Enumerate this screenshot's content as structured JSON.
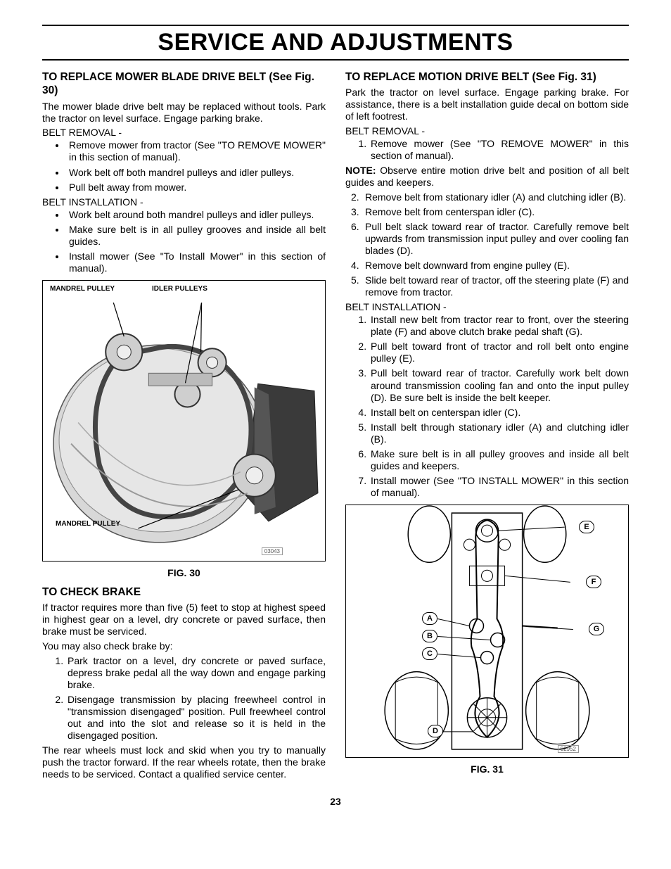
{
  "page_number": "23",
  "main_title": "SERVICE AND ADJUSTMENTS",
  "left": {
    "sec1": {
      "heading": "TO REPLACE MOWER BLADE DRIVE BELT (See Fig. 30)",
      "p1": "The mower blade drive belt may be replaced without tools. Park the tractor on level surface.  Engage parking brake.",
      "removal_head": "BELT REMOVAL -",
      "removal_items": [
        "Remove mower from tractor (See \"TO REMOVE MOWER\" in this section of manual).",
        "Work belt off both mandrel pulleys and idler pulleys.",
        "Pull belt away from mower."
      ],
      "install_head": "BELT INSTALLATION -",
      "install_items": [
        "Work belt around both mandrel pulleys and idler pulleys.",
        "Make sure belt is in all pulley grooves and inside all belt guides.",
        "Install mower (See \"To Install Mower\" in this section of manual)."
      ]
    },
    "fig30": {
      "caption": "FIG. 30",
      "label_mandrel_top": "MANDREL PULLEY",
      "label_idler": "IDLER PULLEYS",
      "label_mandrel_bottom": "MANDREL PULLEY",
      "drawing_id": "03043"
    },
    "sec2": {
      "heading": "TO CHECK BRAKE",
      "p1": "If tractor requires more than five (5) feet to stop at highest speed in highest gear on a level, dry concrete or paved surface, then brake must be serviced.",
      "p2": "You may also check brake by:",
      "steps": [
        "Park tractor on a level, dry concrete or paved surface, depress brake pedal all the way down and engage parking brake.",
        "Disengage transmission by placing freewheel control in \"transmission disengaged\" position. Pull freewheel control out and into the slot and release so it is held in the disengaged position."
      ],
      "p3": "The rear wheels must lock and skid when you try to manually push the tractor forward. If the rear wheels rotate, then the brake needs to be serviced. Contact a qualified service center."
    }
  },
  "right": {
    "sec1": {
      "heading": "TO REPLACE MOTION DRIVE BELT (See Fig. 31)",
      "p1": "Park the tractor on level surface.  Engage parking brake. For assistance, there is a belt installation guide decal on bottom side of left footrest.",
      "removal_head": "BELT REMOVAL -",
      "removal_step1": "Remove mower (See \"TO REMOVE MOWER\" in this section of manual).",
      "note_label": "NOTE:",
      "note_text": " Observe entire motion drive belt and position of all belt guides and keepers.",
      "removal_rest": [
        {
          "n": "2.",
          "t": "Remove belt from stationary idler (A) and clutching idler (B)."
        },
        {
          "n": "3.",
          "t": "Remove belt from centerspan idler (C)."
        },
        {
          "n": "6.",
          "t": "Pull belt slack toward rear of tractor.  Carefully remove belt upwards from transmission input pulley and over cooling fan blades (D)."
        },
        {
          "n": "4.",
          "t": "Remove belt downward from engine pulley (E)."
        },
        {
          "n": "5.",
          "t": "Slide belt toward rear of tractor, off the steering plate (F) and remove from tractor."
        }
      ],
      "install_head": "BELT INSTALLATION -",
      "install_steps": [
        "Install new belt from tractor rear to front, over the steering plate (F) and above clutch brake pedal shaft (G).",
        "Pull belt toward front of tractor and roll belt onto engine pulley (E).",
        "Pull belt toward rear of tractor. Carefully work belt down around transmission cooling fan and onto the input pulley (D). Be sure belt is inside the belt keeper.",
        "Install belt on centerspan idler (C).",
        "Install belt through stationary idler (A) and clutching idler (B).",
        "Make sure belt is in all pulley grooves and inside all belt guides and keepers.",
        "Install mower (See \"TO INSTALL MOWER\" in this section of manual)."
      ]
    },
    "fig31": {
      "caption": "FIG. 31",
      "labels": {
        "A": "A",
        "B": "B",
        "C": "C",
        "D": "D",
        "E": "E",
        "F": "F",
        "G": "G"
      },
      "drawing_id": "02952"
    }
  },
  "style": {
    "colors": {
      "text": "#000000",
      "background": "#ffffff",
      "rule": "#000000",
      "diagram_light": "#d8d8d8",
      "diagram_mid": "#b8b8b8",
      "diagram_dark": "#888888"
    },
    "fonts": {
      "body_pt": 11,
      "heading_pt": 12,
      "title_pt": 26
    }
  }
}
